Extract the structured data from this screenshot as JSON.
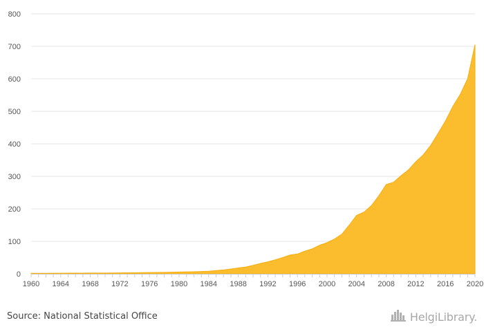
{
  "footer": {
    "source": "Source: National Statistical Office",
    "brand": "HelgiLibrary.",
    "brand_icon": "building-skyline-icon"
  },
  "colors": {
    "area_fill": "#FBBD2D",
    "area_stroke": "#F5AE10",
    "grid": "#e6e6e6",
    "axis": "#cccccc"
  },
  "chart_data": {
    "type": "area",
    "title": "",
    "xlabel": "",
    "ylabel": "",
    "ylim": [
      0,
      800
    ],
    "xlim": [
      1960,
      2020
    ],
    "y_ticks": [
      "0",
      "100",
      "200",
      "300",
      "400",
      "500",
      "600",
      "700",
      "800"
    ],
    "x_ticks": [
      "1960",
      "1964",
      "1968",
      "1972",
      "1976",
      "1980",
      "1984",
      "1988",
      "1992",
      "1996",
      "2000",
      "2004",
      "2008",
      "2012",
      "2016",
      "2020"
    ],
    "grid": true,
    "legend": "none",
    "series": [
      {
        "x": [
          1960,
          1961,
          1962,
          1963,
          1964,
          1965,
          1966,
          1967,
          1968,
          1969,
          1970,
          1971,
          1972,
          1973,
          1974,
          1975,
          1976,
          1977,
          1978,
          1979,
          1980,
          1981,
          1982,
          1983,
          1984,
          1985,
          1986,
          1987,
          1988,
          1989,
          1990,
          1991,
          1992,
          1993,
          1994,
          1995,
          1996,
          1997,
          1998,
          1999,
          2000,
          2001,
          2002,
          2003,
          2004,
          2005,
          2006,
          2007,
          2008,
          2009,
          2010,
          2011,
          2012,
          2013,
          2014,
          2015,
          2016,
          2017,
          2018,
          2019,
          2020
        ],
        "values": [
          1.5,
          1.6,
          1.7,
          1.8,
          1.9,
          2.0,
          2.1,
          2.2,
          2.3,
          2.4,
          2.5,
          2.7,
          2.9,
          3.1,
          3.3,
          3.6,
          3.9,
          4.2,
          4.6,
          5.0,
          5.5,
          6.0,
          6.5,
          7.1,
          8,
          10,
          12,
          15,
          18,
          21,
          26,
          32,
          37,
          43,
          50,
          58,
          61,
          70,
          77,
          88,
          96,
          107,
          122,
          150,
          180,
          190,
          210,
          240,
          275,
          282,
          302,
          320,
          345,
          366,
          395,
          432,
          470,
          515,
          552,
          600,
          705
        ]
      }
    ]
  }
}
